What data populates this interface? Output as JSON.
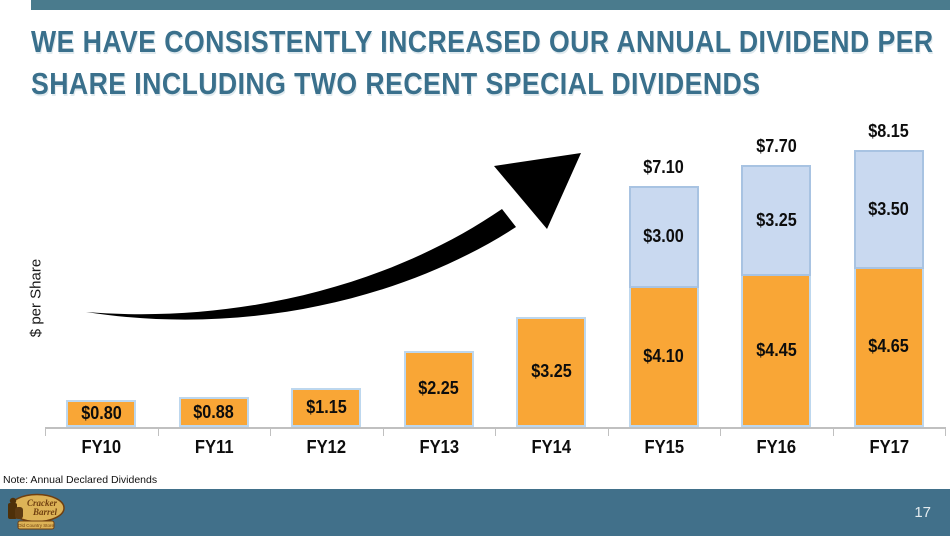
{
  "slide": {
    "title_line1": "WE HAVE CONSISTENTLY INCREASED OUR ANNUAL DIVIDEND PER",
    "title_line2": "SHARE INCLUDING TWO RECENT SPECIAL DIVIDENDS",
    "note": "Note: Annual Declared Dividends",
    "page_number": "17"
  },
  "logo": {
    "name": "Cracker Barrel Old Country Store",
    "line1": "Cracker",
    "line2": "Barrel",
    "banner": "Old Country Store"
  },
  "chart_data": {
    "type": "bar",
    "stacked": true,
    "title": "",
    "xlabel": "",
    "ylabel": "$ per Share",
    "ylim": [
      0,
      9
    ],
    "grid": false,
    "legend": "none",
    "categories": [
      "FY10",
      "FY11",
      "FY12",
      "FY13",
      "FY14",
      "FY15",
      "FY16",
      "FY17"
    ],
    "series": [
      {
        "name": "Annual Declared Dividend",
        "color": "#F9A636",
        "values": [
          0.8,
          0.88,
          1.15,
          2.25,
          3.25,
          4.1,
          4.45,
          4.65
        ],
        "labels": [
          "$0.80",
          "$0.88",
          "$1.15",
          "$2.25",
          "$3.25",
          "$4.10",
          "$4.45",
          "$4.65"
        ]
      },
      {
        "name": "Special Dividend",
        "color": "#C9D9F0",
        "values": [
          null,
          null,
          null,
          null,
          null,
          3.0,
          3.25,
          3.5
        ],
        "labels": [
          null,
          null,
          null,
          null,
          null,
          "$3.00",
          "$3.25",
          "$3.50"
        ]
      }
    ],
    "totals": [
      null,
      null,
      null,
      null,
      null,
      7.1,
      7.7,
      8.15
    ],
    "total_labels": [
      null,
      null,
      null,
      null,
      null,
      "$7.10",
      "$7.70",
      "$8.15"
    ],
    "annotations": [
      "upward growth swoosh arrow"
    ]
  },
  "colors": {
    "teal_top": "#4A7B8D",
    "teal_footer": "#41708A",
    "title_teal": "#3A708C",
    "orange": "#F9A636",
    "orange_border": "#BDD7EE",
    "special_fill": "#C9D9F0",
    "special_border": "#A8C3E2",
    "axis_gray": "#C0C0C0",
    "arrow_black": "#000000",
    "logo_tan": "#DDB357",
    "logo_brown": "#6F3F10"
  }
}
